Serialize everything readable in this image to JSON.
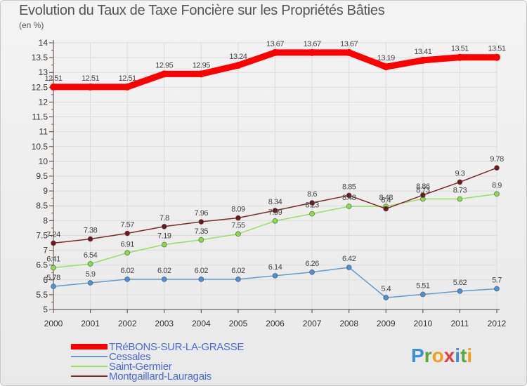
{
  "title": "Evolution du Taux de Taxe Foncière sur les Propriétés Bâties",
  "unit_label": "(en %)",
  "logo": {
    "letters": [
      "P",
      "r",
      "o",
      "x",
      "i",
      "t",
      "i"
    ],
    "colors": [
      "#3a8fd8",
      "#5aa83a",
      "#f0a020",
      "#e04040",
      "#3a8fd8",
      "#5aa83a",
      "#f0a020"
    ]
  },
  "chart_data": {
    "type": "line",
    "x": [
      "2000",
      "2001",
      "2002",
      "2003",
      "2004",
      "2005",
      "2006",
      "2007",
      "2008",
      "2009",
      "2010",
      "2011",
      "2012"
    ],
    "ylim": [
      5,
      14
    ],
    "yticks": [
      5,
      5.5,
      6,
      6.5,
      7,
      7.5,
      8,
      8.5,
      9,
      9.5,
      10,
      10.5,
      11,
      11.5,
      12,
      12.5,
      13,
      13.5,
      14
    ],
    "ytick_labels": [
      "5",
      "5.5",
      "6",
      "6.5",
      "7",
      "7.5",
      "8",
      "8.5",
      "9",
      "9.5",
      "10",
      "10.5",
      "11",
      "11.5",
      "12",
      "12.5",
      "13",
      "13.5",
      "14"
    ],
    "legend_position": "bottom-left",
    "series": [
      {
        "name": "TRéBONS-SUR-LA-GRASSE",
        "color": "#ff0000",
        "marker": "#ff0000",
        "style": "thick",
        "values": [
          12.51,
          12.51,
          12.51,
          12.95,
          12.95,
          13.24,
          13.67,
          13.67,
          13.67,
          13.19,
          13.41,
          13.51,
          13.51
        ],
        "labels": [
          "12.51",
          "12.51",
          "12.51",
          "12.95",
          "12.95",
          "13.24",
          "13.67",
          "13.67",
          "13.67",
          "13.19",
          "13.41",
          "13.51",
          "13.51"
        ]
      },
      {
        "name": "Cessales",
        "color": "#6699cc",
        "marker": "#4a90d8",
        "style": "thin",
        "values": [
          5.78,
          5.9,
          6.02,
          6.02,
          6.02,
          6.02,
          6.14,
          6.26,
          6.42,
          5.4,
          5.51,
          5.62,
          5.7
        ],
        "labels": [
          "5.78",
          "5.9",
          "6.02",
          "6.02",
          "6.02",
          "6.02",
          "6.14",
          "6.26",
          "6.42",
          "5.4",
          "5.51",
          "5.62",
          "5.7"
        ]
      },
      {
        "name": "Saint-Germier",
        "color": "#99dd66",
        "marker": "#88dd44",
        "style": "thin",
        "values": [
          6.41,
          6.54,
          6.91,
          7.19,
          7.35,
          7.55,
          7.99,
          8.23,
          8.48,
          8.48,
          8.73,
          8.73,
          8.9
        ],
        "labels": [
          "6.41",
          "6.54",
          "6.91",
          "7.19",
          "7.35",
          "7.55",
          "7.99",
          "8.23",
          "8.48",
          "8.48",
          "8.73",
          "8.73",
          "8.9"
        ]
      },
      {
        "name": "Montgaillard-Lauragais",
        "color": "#7a2b2b",
        "marker": "#6a1a1a",
        "style": "thin",
        "values": [
          7.24,
          7.38,
          7.57,
          7.8,
          7.96,
          8.09,
          8.34,
          8.6,
          8.85,
          8.4,
          8.86,
          9.3,
          9.78
        ],
        "labels": [
          "7.24",
          "7.38",
          "7.57",
          "7.8",
          "7.96",
          "8.09",
          "8.34",
          "8.6",
          "8.85",
          "8.4",
          "8.86",
          "9.3",
          "9.78"
        ]
      }
    ]
  }
}
